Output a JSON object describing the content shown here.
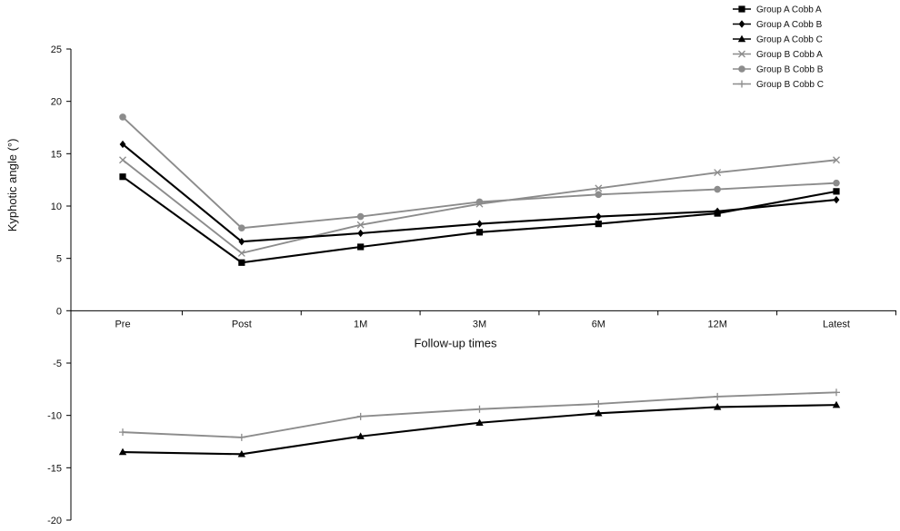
{
  "chart_data": {
    "type": "line",
    "title": "",
    "xlabel": "Follow-up times",
    "ylabel": "Kyphotic angle (°)",
    "categories": [
      "Pre",
      "Post",
      "1M",
      "3M",
      "6M",
      "12M",
      "Latest"
    ],
    "ylim": [
      -20,
      25
    ],
    "yticks": [
      -20,
      -15,
      -10,
      -5,
      0,
      5,
      10,
      15,
      20,
      25
    ],
    "grid": false,
    "legend_position": "top-right",
    "series": [
      {
        "name": "Group A Cobb A",
        "color": "#000000",
        "marker": "square",
        "values": [
          12.8,
          4.6,
          6.1,
          7.5,
          8.3,
          9.3,
          11.4
        ]
      },
      {
        "name": "Group A Cobb B",
        "color": "#000000",
        "marker": "diamond",
        "values": [
          15.9,
          6.6,
          7.4,
          8.3,
          9.0,
          9.5,
          10.6
        ]
      },
      {
        "name": "Group A Cobb C",
        "color": "#000000",
        "marker": "triangle",
        "values": [
          -13.5,
          -13.7,
          -12.0,
          -10.7,
          -9.8,
          -9.2,
          -9.0
        ]
      },
      {
        "name": "Group B Cobb A",
        "color": "#8c8c8c",
        "marker": "x",
        "values": [
          14.4,
          5.5,
          8.2,
          10.2,
          11.7,
          13.2,
          14.4
        ]
      },
      {
        "name": "Group B Cobb B",
        "color": "#8c8c8c",
        "marker": "circle",
        "values": [
          18.5,
          7.9,
          9.0,
          10.4,
          11.1,
          11.6,
          12.2
        ]
      },
      {
        "name": "Group B Cobb C",
        "color": "#8c8c8c",
        "marker": "plus",
        "values": [
          -11.6,
          -12.1,
          -10.1,
          -9.4,
          -8.9,
          -8.2,
          -7.8
        ]
      }
    ]
  }
}
